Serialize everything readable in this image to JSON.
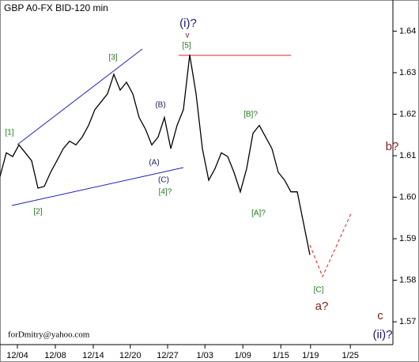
{
  "chart_data": {
    "type": "line",
    "title": "GBP A0-FX BID-120 min",
    "credit": "forDmitry@yahoo.com",
    "color": "#000000",
    "x": [
      0,
      1,
      2,
      3,
      4,
      5,
      6,
      7,
      8,
      9,
      10,
      11,
      12,
      13,
      14,
      15,
      16,
      17,
      18,
      19,
      20,
      21,
      22,
      23,
      24,
      25,
      26,
      27,
      28,
      29,
      30,
      31,
      32,
      33,
      34,
      35,
      36,
      37,
      38,
      39,
      40,
      41,
      42,
      43,
      44,
      45,
      46,
      47,
      48,
      49
    ],
    "values": [
      1.605,
      1.6107,
      1.6098,
      1.6126,
      1.6107,
      1.6088,
      1.6022,
      1.6026,
      1.606,
      1.6088,
      1.6117,
      1.6135,
      1.6126,
      1.6145,
      1.6173,
      1.6211,
      1.623,
      1.6249,
      1.6296,
      1.6258,
      1.6277,
      1.6249,
      1.6192,
      1.6164,
      1.6126,
      1.6145,
      1.6192,
      1.6117,
      1.6173,
      1.6211,
      1.6343,
      1.6249,
      1.6117,
      1.6041,
      1.6069,
      1.6107,
      1.6098,
      1.606,
      1.6013,
      1.6069,
      1.6154,
      1.6173,
      1.6145,
      1.6117,
      1.606,
      1.6041,
      1.6013,
      1.6013,
      1.5937,
      1.5861
    ],
    "xlim": [
      0,
      62
    ],
    "xticks": [
      {
        "value": 2.75,
        "label": "12/04"
      },
      {
        "value": 8.75,
        "label": "12/08"
      },
      {
        "value": 14.75,
        "label": "12/14"
      },
      {
        "value": 20.6,
        "label": "12/20"
      },
      {
        "value": 26.5,
        "label": "12/27"
      },
      {
        "value": 32.4,
        "label": "1/03"
      },
      {
        "value": 38.4,
        "label": "1/09"
      },
      {
        "value": 44.4,
        "label": "1/15"
      },
      {
        "value": 49.1,
        "label": "1/19"
      },
      {
        "value": 55.4,
        "label": "1/25"
      }
    ],
    "ylim": [
      1.5645,
      1.6475
    ],
    "yticks": [
      1.57,
      1.58,
      1.59,
      {
        "value": 1.6,
        "label": "1.60"
      },
      1.61,
      1.62,
      1.63,
      1.64
    ],
    "annotations": [
      {
        "text": "[1]",
        "color": "#1a7a1a"
      },
      {
        "text": "[2]",
        "color": "#1a7a1a"
      },
      {
        "text": "[3]",
        "color": "#1a7a1a"
      },
      {
        "text": "(B)",
        "color": "#1a1a6e"
      },
      {
        "text": "(A)",
        "color": "#1a1a6e"
      },
      {
        "text": "(C)",
        "color": "#1a1a6e"
      },
      {
        "text": "[4]?",
        "color": "#1a7a1a"
      },
      {
        "text": "(i)?",
        "color": "#1a1a6e"
      },
      {
        "text": "v",
        "color": "#8b1a1a"
      },
      {
        "text": "[5]",
        "color": "#1a7a1a"
      },
      {
        "text": "[B]?",
        "color": "#1a7a1a"
      },
      {
        "text": "[A]?",
        "color": "#1a7a1a"
      },
      {
        "text": "[C]",
        "color": "#1a7a1a"
      },
      {
        "text": "a?",
        "color": "#8b1a1a"
      },
      {
        "text": "b?",
        "color": "#8b1a1a"
      },
      {
        "text": "c",
        "color": "#8b1a1a"
      },
      {
        "text": "(ii)?",
        "color": "#1a1a6e"
      }
    ]
  }
}
